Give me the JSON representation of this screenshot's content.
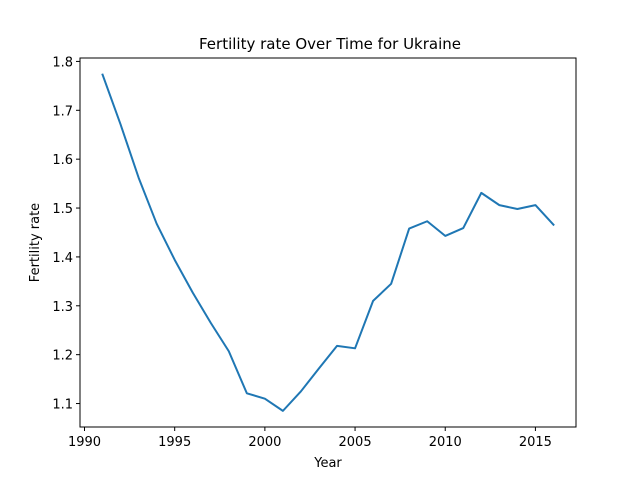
{
  "chart_data": {
    "type": "line",
    "title": "Fertility rate Over Time for Ukraine",
    "xlabel": "Year",
    "ylabel": "Fertility rate",
    "xlim": [
      1989.75,
      2017.25
    ],
    "ylim": [
      1.052,
      1.807
    ],
    "grid": false,
    "x_ticks": [
      1990,
      1995,
      2000,
      2005,
      2010,
      2015
    ],
    "y_ticks": [
      1.1,
      1.2,
      1.3,
      1.4,
      1.5,
      1.6,
      1.7,
      1.8
    ],
    "x_tick_labels": [
      "1990",
      "1995",
      "2000",
      "2005",
      "2010",
      "2015"
    ],
    "y_tick_labels": [
      "1.1",
      "1.2",
      "1.3",
      "1.4",
      "1.5",
      "1.6",
      "1.7",
      "1.8"
    ],
    "series": [
      {
        "color": "#1f77b4",
        "x": [
          1991,
          1992,
          1993,
          1994,
          1995,
          1996,
          1997,
          1998,
          1999,
          2000,
          2001,
          2002,
          2003,
          2004,
          2005,
          2006,
          2007,
          2008,
          2009,
          2010,
          2011,
          2012,
          2013,
          2014,
          2015,
          2016
        ],
        "y": [
          1.773,
          1.671,
          1.562,
          1.468,
          1.394,
          1.327,
          1.265,
          1.207,
          1.121,
          1.11,
          1.085,
          1.125,
          1.172,
          1.218,
          1.213,
          1.31,
          1.345,
          1.458,
          1.473,
          1.443,
          1.459,
          1.531,
          1.506,
          1.498,
          1.506,
          1.466
        ]
      }
    ]
  }
}
